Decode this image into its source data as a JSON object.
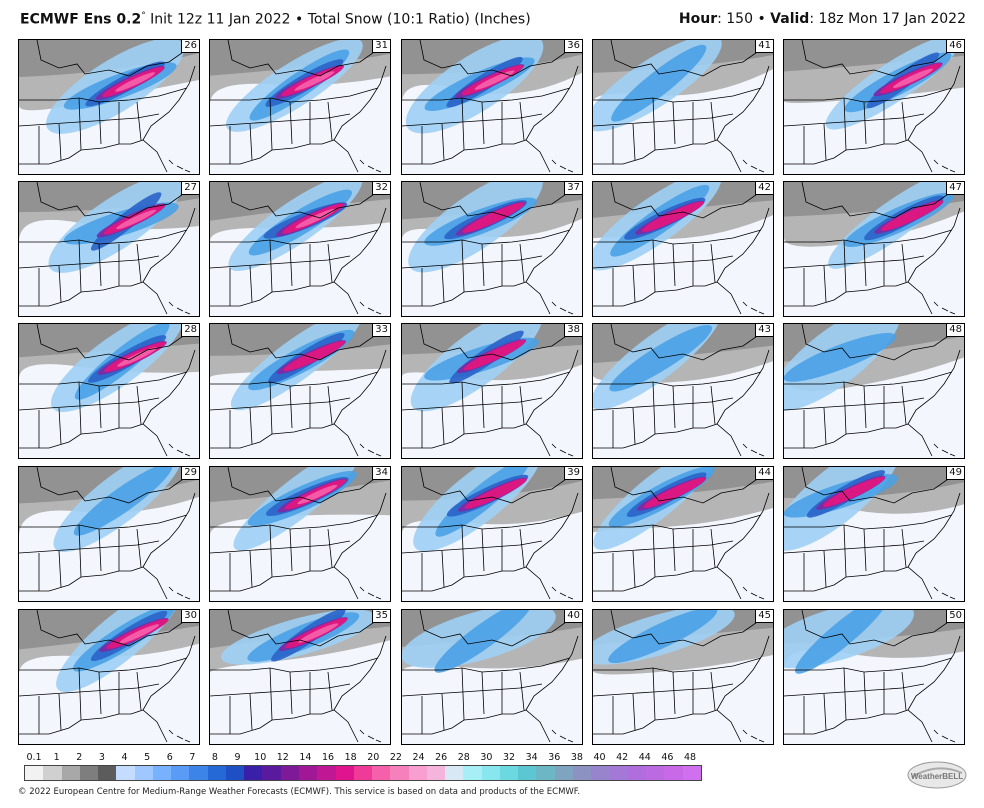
{
  "header": {
    "model": "ECMWF Ens 0.2",
    "degree": "°",
    "init": " Init 12z 11 Jan 2022",
    "sep1": " • ",
    "product": "Total Snow (10:1 Ratio) (Inches)",
    "hour_label": "Hour",
    "hour_value": ": 150",
    "sep2": " • ",
    "valid_label": "Valid",
    "valid_value": ": 18z Mon 17 Jan 2022"
  },
  "members": [
    [
      "26",
      "31",
      "36",
      "41",
      "46"
    ],
    [
      "27",
      "32",
      "37",
      "42",
      "47"
    ],
    [
      "28",
      "33",
      "38",
      "43",
      "48"
    ],
    [
      "29",
      "34",
      "39",
      "44",
      "49"
    ],
    [
      "30",
      "35",
      "40",
      "45",
      "50"
    ]
  ],
  "colorbar": {
    "ticks": [
      "0.1",
      "1",
      "2",
      "3",
      "4",
      "5",
      "6",
      "7",
      "8",
      "9",
      "10",
      "12",
      "14",
      "16",
      "18",
      "20",
      "22",
      "24",
      "26",
      "28",
      "30",
      "32",
      "34",
      "36",
      "38",
      "40",
      "42",
      "44",
      "46",
      "48"
    ],
    "colors": [
      "#f2f2f2",
      "#d0d0d0",
      "#a8a8a8",
      "#7e7e7e",
      "#5c5c5c",
      "#c3dcff",
      "#9ec8ff",
      "#78b2ff",
      "#5a9cf5",
      "#3c84e8",
      "#2469d6",
      "#1f4fc4",
      "#3a20a8",
      "#5a1a9e",
      "#7e1a98",
      "#a01896",
      "#c01794",
      "#e0148e",
      "#f03a98",
      "#f460aa",
      "#f680bc",
      "#f89ed0",
      "#f4b4dc",
      "#d8e8f4",
      "#a8eef6",
      "#88e6ee",
      "#6cd8e0",
      "#5cc6d2",
      "#6cb6c6",
      "#7fa4c0",
      "#8c92c2",
      "#9884cc",
      "#a478d6",
      "#b06edc",
      "#bc6ae2",
      "#c86ae8",
      "#d070ee"
    ]
  },
  "copyright": "© 2022 European Centre for Medium-Range Weather Forecasts (ECMWF). This service is based on data and products of the ECMWF.",
  "logo": "WeatherBELL"
}
